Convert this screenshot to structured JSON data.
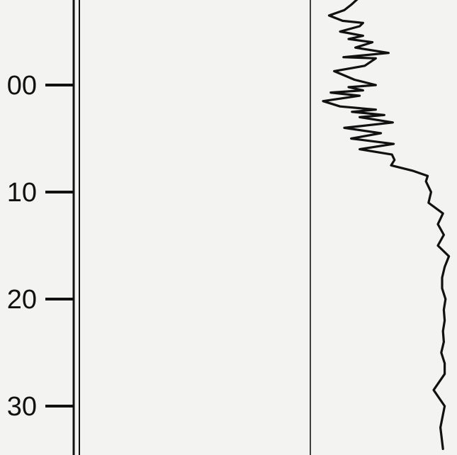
{
  "chart_data": {
    "type": "line",
    "title": "",
    "xlabel": "",
    "ylabel": "",
    "y_tick_labels": [
      "00",
      "10",
      "20",
      "30"
    ],
    "y_ticks": [
      0,
      10,
      20,
      30
    ],
    "ylim": [
      -8.2,
      34.2
    ],
    "y_axis_inverted": true,
    "reference_line": true,
    "grid": false,
    "legend": "none",
    "colors": {
      "background": "#f3f3f1",
      "ink": "#111111"
    },
    "series": [
      {
        "x": [
          0.55,
          0.48,
          0.4,
          0.22,
          0.38,
          0.62,
          0.58,
          0.35,
          0.62,
          0.45,
          0.73,
          0.53,
          0.92,
          0.39,
          0.77,
          0.64,
          0.28,
          0.52,
          0.77,
          0.45,
          0.62,
          0.24,
          0.58,
          0.15,
          0.35,
          0.77,
          0.49,
          0.87,
          0.58,
          0.97,
          0.4,
          0.83,
          0.48,
          0.98,
          0.58,
          0.96,
          0.99,
          0.95,
          1.2,
          1.38,
          1.36,
          1.42,
          1.39,
          1.56,
          1.5,
          1.57,
          1.5,
          1.63,
          1.58,
          1.55,
          1.55,
          1.59,
          1.57,
          1.58,
          1.56,
          1.57,
          1.54,
          1.58,
          1.58,
          1.45,
          1.58,
          1.53,
          1.56
        ],
        "y": [
          -8.0,
          -7.5,
          -7.0,
          -6.5,
          -6.0,
          -5.8,
          -5.5,
          -5.0,
          -4.6,
          -4.3,
          -4.0,
          -3.5,
          -3.0,
          -2.6,
          -2.5,
          -1.8,
          -1.3,
          -0.5,
          0.0,
          0.2,
          0.5,
          0.7,
          1.0,
          1.5,
          2.0,
          2.3,
          2.5,
          2.8,
          3.0,
          3.5,
          4.0,
          4.5,
          5.0,
          5.5,
          6.0,
          6.5,
          7.0,
          7.5,
          8.0,
          8.5,
          9.0,
          10.0,
          11.0,
          12.0,
          13.0,
          14.0,
          15.0,
          16.0,
          17.0,
          18.0,
          19.0,
          20.0,
          21.0,
          22.0,
          23.0,
          24.0,
          25.0,
          26.0,
          27.0,
          28.5,
          30.0,
          32.0,
          34.0
        ]
      }
    ]
  }
}
